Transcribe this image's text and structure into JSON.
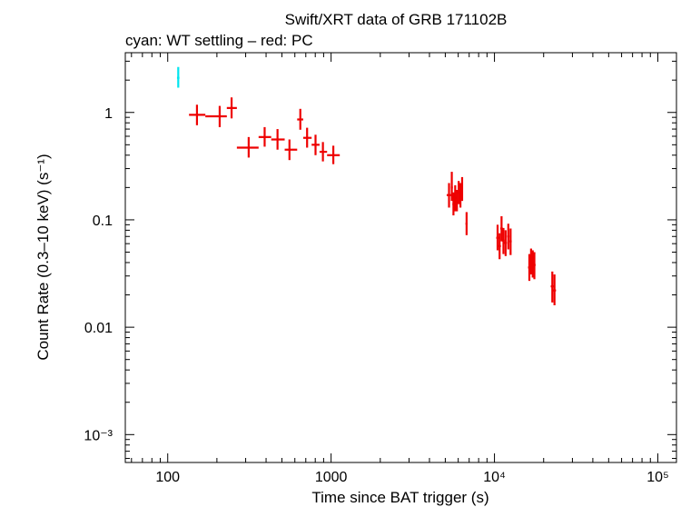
{
  "chart_data": {
    "type": "scatter",
    "title": "Swift/XRT data of GRB 171102B",
    "subtitle": "cyan: WT settling – red: PC",
    "xlabel": "Time since BAT trigger (s)",
    "ylabel": "Count Rate (0.3–10 keV) (s⁻¹)",
    "x_scale": "log",
    "y_scale": "log",
    "xlim": [
      55,
      130000
    ],
    "ylim": [
      0.00055,
      3.6
    ],
    "x_ticks": [
      {
        "value": 100,
        "label": "100"
      },
      {
        "value": 1000,
        "label": "1000"
      },
      {
        "value": 10000,
        "label": "10⁴"
      },
      {
        "value": 100000,
        "label": "10⁵"
      }
    ],
    "y_ticks": [
      {
        "value": 1,
        "label": "1"
      },
      {
        "value": 0.1,
        "label": "0.1"
      },
      {
        "value": 0.01,
        "label": "0.01"
      },
      {
        "value": 0.001,
        "label": "10⁻³"
      }
    ],
    "series": [
      {
        "name": "WT settling",
        "color": "#00e5ee",
        "points": [
          {
            "x": 116,
            "xerr": [
              114,
              118
            ],
            "y": 2.1,
            "yerr": [
              1.7,
              2.65
            ]
          }
        ]
      },
      {
        "name": "PC",
        "color": "#ee0000",
        "points": [
          {
            "x": 151,
            "xerr": [
              135,
              170
            ],
            "y": 0.95,
            "yerr": [
              0.76,
              1.18
            ]
          },
          {
            "x": 208,
            "xerr": [
              170,
              230
            ],
            "y": 0.92,
            "yerr": [
              0.73,
              1.15
            ]
          },
          {
            "x": 246,
            "xerr": [
              230,
              265
            ],
            "y": 1.1,
            "yerr": [
              0.88,
              1.38
            ]
          },
          {
            "x": 313,
            "xerr": [
              265,
              360
            ],
            "y": 0.47,
            "yerr": [
              0.38,
              0.59
            ]
          },
          {
            "x": 392,
            "xerr": [
              360,
              430
            ],
            "y": 0.59,
            "yerr": [
              0.48,
              0.73
            ]
          },
          {
            "x": 470,
            "xerr": [
              430,
              520
            ],
            "y": 0.56,
            "yerr": [
              0.45,
              0.7
            ]
          },
          {
            "x": 556,
            "xerr": [
              520,
              620
            ],
            "y": 0.45,
            "yerr": [
              0.36,
              0.56
            ]
          },
          {
            "x": 648,
            "xerr": [
              620,
              675
            ],
            "y": 0.86,
            "yerr": [
              0.69,
              1.08
            ]
          },
          {
            "x": 713,
            "xerr": [
              675,
              760
            ],
            "y": 0.58,
            "yerr": [
              0.47,
              0.72
            ]
          },
          {
            "x": 803,
            "xerr": [
              760,
              850
            ],
            "y": 0.5,
            "yerr": [
              0.4,
              0.62
            ]
          },
          {
            "x": 891,
            "xerr": [
              850,
              945
            ],
            "y": 0.43,
            "yerr": [
              0.35,
              0.53
            ]
          },
          {
            "x": 1032,
            "xerr": [
              945,
              1130
            ],
            "y": 0.4,
            "yerr": [
              0.33,
              0.49
            ]
          },
          {
            "x": 5270,
            "xerr": [
              5100,
              5450
            ],
            "y": 0.17,
            "yerr": [
              0.13,
              0.22
            ]
          },
          {
            "x": 5480,
            "xerr": [
              5400,
              5560
            ],
            "y": 0.2,
            "yerr": [
              0.15,
              0.28
            ]
          },
          {
            "x": 5610,
            "xerr": [
              5530,
              5690
            ],
            "y": 0.14,
            "yerr": [
              0.11,
              0.18
            ]
          },
          {
            "x": 5750,
            "xerr": [
              5670,
              5830
            ],
            "y": 0.16,
            "yerr": [
              0.12,
              0.21
            ]
          },
          {
            "x": 5890,
            "xerr": [
              5810,
              5970
            ],
            "y": 0.15,
            "yerr": [
              0.12,
              0.19
            ]
          },
          {
            "x": 6040,
            "xerr": [
              5960,
              6120
            ],
            "y": 0.18,
            "yerr": [
              0.14,
              0.23
            ]
          },
          {
            "x": 6190,
            "xerr": [
              6110,
              6270
            ],
            "y": 0.17,
            "yerr": [
              0.13,
              0.22
            ]
          },
          {
            "x": 6340,
            "xerr": [
              6260,
              6420
            ],
            "y": 0.19,
            "yerr": [
              0.15,
              0.25
            ]
          },
          {
            "x": 6750,
            "xerr": [
              6650,
              6850
            ],
            "y": 0.092,
            "yerr": [
              0.072,
              0.118
            ]
          },
          {
            "x": 10450,
            "xerr": [
              10250,
              10650
            ],
            "y": 0.068,
            "yerr": [
              0.052,
              0.09
            ]
          },
          {
            "x": 10750,
            "xerr": [
              10550,
              10950
            ],
            "y": 0.057,
            "yerr": [
              0.043,
              0.075
            ]
          },
          {
            "x": 11050,
            "xerr": [
              10850,
              11250
            ],
            "y": 0.083,
            "yerr": [
              0.063,
              0.108
            ]
          },
          {
            "x": 11350,
            "xerr": [
              11150,
              11550
            ],
            "y": 0.064,
            "yerr": [
              0.048,
              0.084
            ]
          },
          {
            "x": 11700,
            "xerr": [
              11500,
              11900
            ],
            "y": 0.061,
            "yerr": [
              0.046,
              0.08
            ]
          },
          {
            "x": 12150,
            "xerr": [
              11950,
              12350
            ],
            "y": 0.07,
            "yerr": [
              0.053,
              0.092
            ]
          },
          {
            "x": 12550,
            "xerr": [
              12350,
              12750
            ],
            "y": 0.063,
            "yerr": [
              0.047,
              0.083
            ]
          },
          {
            "x": 16350,
            "xerr": [
              16050,
              16650
            ],
            "y": 0.036,
            "yerr": [
              0.027,
              0.048
            ]
          },
          {
            "x": 16750,
            "xerr": [
              16450,
              17050
            ],
            "y": 0.041,
            "yerr": [
              0.031,
              0.054
            ]
          },
          {
            "x": 17150,
            "xerr": [
              16850,
              17450
            ],
            "y": 0.039,
            "yerr": [
              0.029,
              0.052
            ]
          },
          {
            "x": 17550,
            "xerr": [
              17250,
              17850
            ],
            "y": 0.038,
            "yerr": [
              0.028,
              0.05
            ]
          },
          {
            "x": 22600,
            "xerr": [
              22100,
              23100
            ],
            "y": 0.024,
            "yerr": [
              0.017,
              0.033
            ]
          },
          {
            "x": 23300,
            "xerr": [
              22800,
              23800
            ],
            "y": 0.022,
            "yerr": [
              0.016,
              0.031
            ]
          }
        ]
      }
    ]
  }
}
